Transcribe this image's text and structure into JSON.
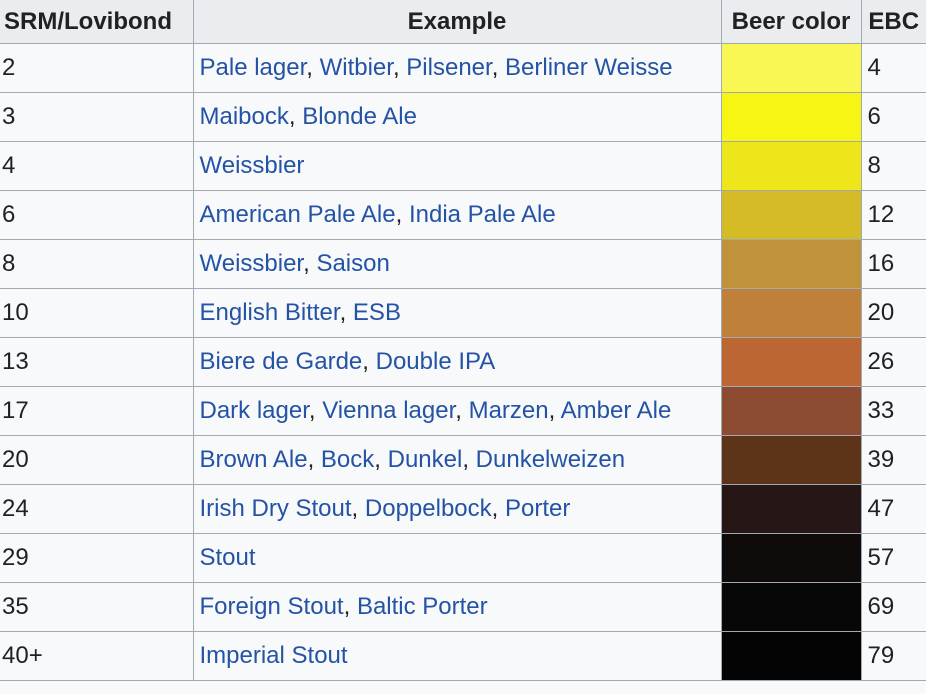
{
  "table": {
    "headers": {
      "srm": "SRM/Lovibond",
      "example": "Example",
      "color": "Beer color",
      "ebc": "EBC"
    },
    "rows": [
      {
        "srm": "2",
        "examples": [
          "Pale lager",
          "Witbier",
          "Pilsener",
          "Berliner Weisse"
        ],
        "color": "#F8F753",
        "ebc": "4"
      },
      {
        "srm": "3",
        "examples": [
          "Maibock",
          "Blonde Ale"
        ],
        "color": "#F6F513",
        "ebc": "6"
      },
      {
        "srm": "4",
        "examples": [
          "Weissbier"
        ],
        "color": "#ECE61A",
        "ebc": "8"
      },
      {
        "srm": "6",
        "examples": [
          "American Pale Ale",
          "India Pale Ale"
        ],
        "color": "#D5BC26",
        "ebc": "12"
      },
      {
        "srm": "8",
        "examples": [
          "Weissbier",
          "Saison"
        ],
        "color": "#BF923B",
        "ebc": "16"
      },
      {
        "srm": "10",
        "examples": [
          "English Bitter",
          "ESB"
        ],
        "color": "#BF813A",
        "ebc": "20"
      },
      {
        "srm": "13",
        "examples": [
          "Biere de Garde",
          "Double IPA"
        ],
        "color": "#BC6733",
        "ebc": "26"
      },
      {
        "srm": "17",
        "examples": [
          "Dark lager",
          "Vienna lager",
          "Marzen",
          "Amber Ale"
        ],
        "color": "#8D4C32",
        "ebc": "33"
      },
      {
        "srm": "20",
        "examples": [
          "Brown Ale",
          "Bock",
          "Dunkel",
          "Dunkelweizen"
        ],
        "color": "#5D341A",
        "ebc": "39"
      },
      {
        "srm": "24",
        "examples": [
          "Irish Dry Stout",
          "Doppelbock",
          "Porter"
        ],
        "color": "#261716",
        "ebc": "47"
      },
      {
        "srm": "29",
        "examples": [
          "Stout"
        ],
        "color": "#0F0B0A",
        "ebc": "57"
      },
      {
        "srm": "35",
        "examples": [
          "Foreign Stout",
          "Baltic Porter"
        ],
        "color": "#080707",
        "ebc": "69"
      },
      {
        "srm": "40+",
        "examples": [
          "Imperial Stout"
        ],
        "color": "#030403",
        "ebc": "79"
      }
    ]
  }
}
